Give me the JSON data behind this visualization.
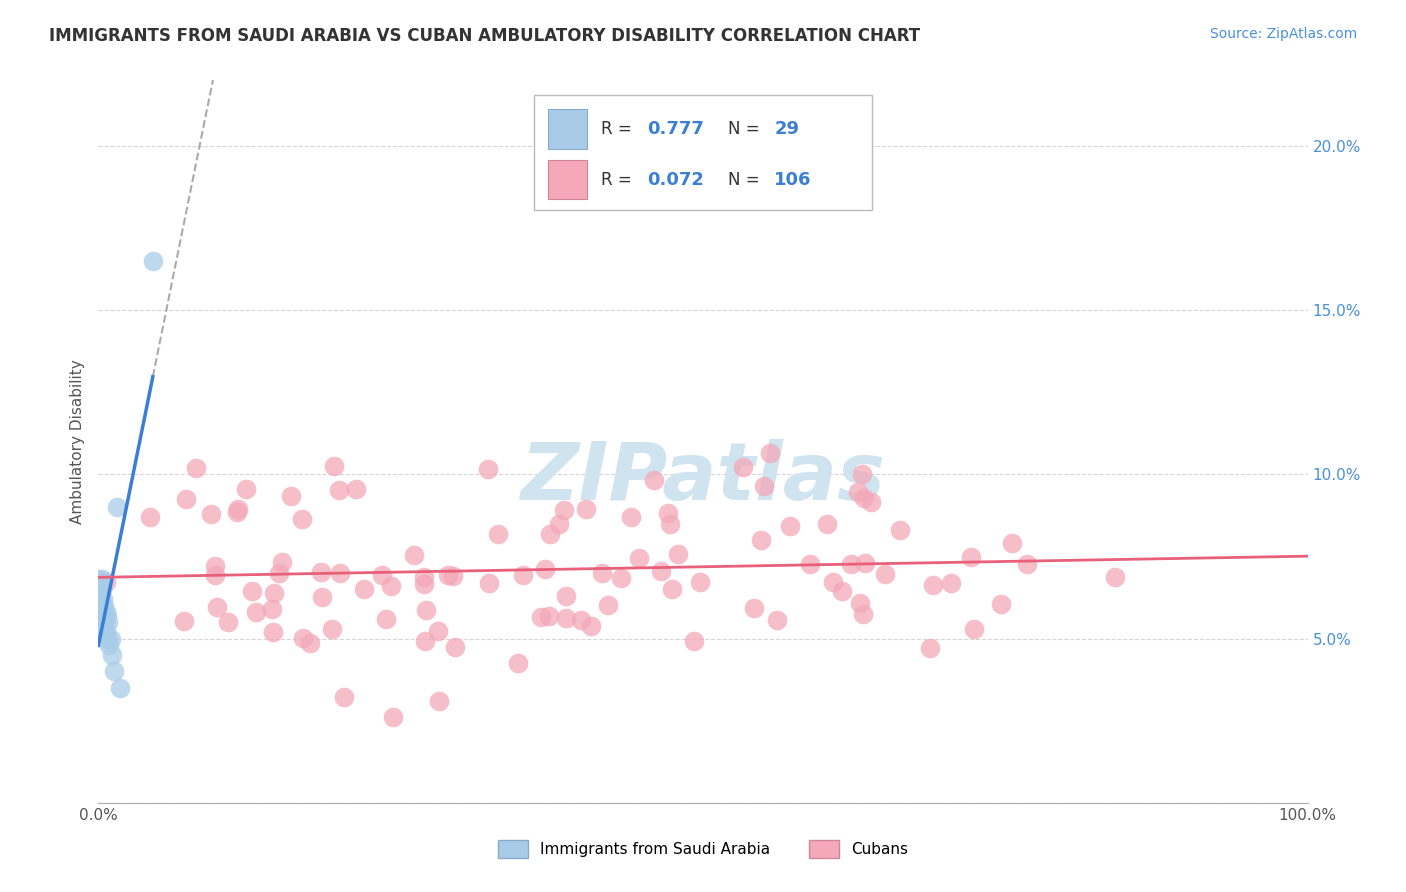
{
  "title": "IMMIGRANTS FROM SAUDI ARABIA VS CUBAN AMBULATORY DISABILITY CORRELATION CHART",
  "source": "Source: ZipAtlas.com",
  "ylabel": "Ambulatory Disability",
  "xlim": [
    0.0,
    1.0
  ],
  "ylim": [
    0.0,
    0.22
  ],
  "blue_color": "#3a7fd5",
  "pink_color": "#e8607a",
  "blue_scatter_color": "#a8cce8",
  "pink_scatter_color": "#f4a8b8",
  "background_color": "#ffffff",
  "grid_color": "#cccccc",
  "title_color": "#333333",
  "source_color": "#4a90d9",
  "watermark_color": "#d0e4f0",
  "legend_R1": "0.777",
  "legend_N1": "29",
  "legend_R2": "0.072",
  "legend_N2": "106",
  "legend_label1": "Immigrants from Saudi Arabia",
  "legend_label2": "Cubans"
}
